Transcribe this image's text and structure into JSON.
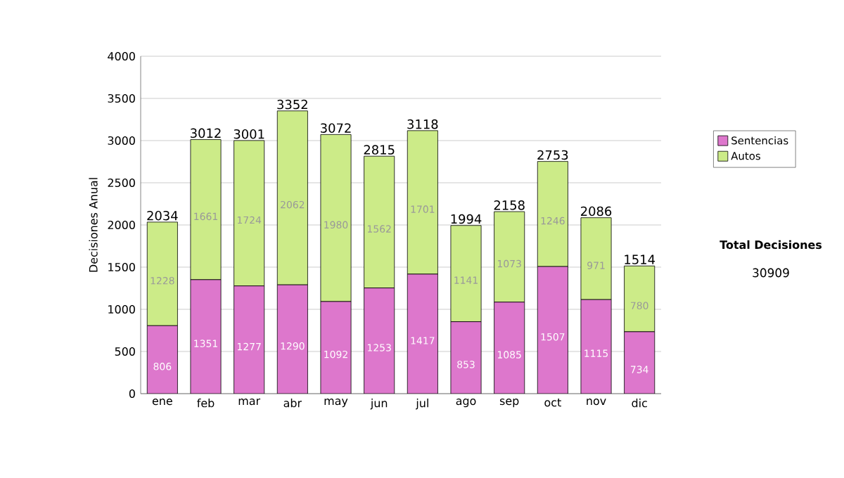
{
  "chart_data": {
    "type": "bar",
    "stacked": true,
    "ylabel": "Decisiones Anual",
    "categories": [
      "ene",
      "feb",
      "mar",
      "abr",
      "may",
      "jun",
      "jul",
      "ago",
      "sep",
      "oct",
      "nov",
      "dic"
    ],
    "series": [
      {
        "name": "Sentencias",
        "color": "#dd77cc",
        "values": [
          806,
          1351,
          1277,
          1290,
          1092,
          1253,
          1417,
          853,
          1085,
          1507,
          1115,
          734
        ]
      },
      {
        "name": "Autos",
        "color": "#cceb88",
        "values": [
          1228,
          1661,
          1724,
          2062,
          1980,
          1562,
          1701,
          1141,
          1073,
          1246,
          971,
          780
        ]
      }
    ],
    "totals": [
      "2034",
      "3012",
      "3001",
      "3352",
      "3072",
      "2815",
      "3118",
      "1994",
      "2158",
      "2753",
      "2086",
      "1514"
    ],
    "ylim": [
      0,
      4000
    ],
    "yticks": [
      0,
      500,
      1000,
      1500,
      2000,
      2500,
      3000,
      3500,
      4000
    ],
    "grid": "y",
    "legend": "right",
    "data_labels": true,
    "annotations": [
      "Total Decisiones",
      "30909"
    ]
  }
}
